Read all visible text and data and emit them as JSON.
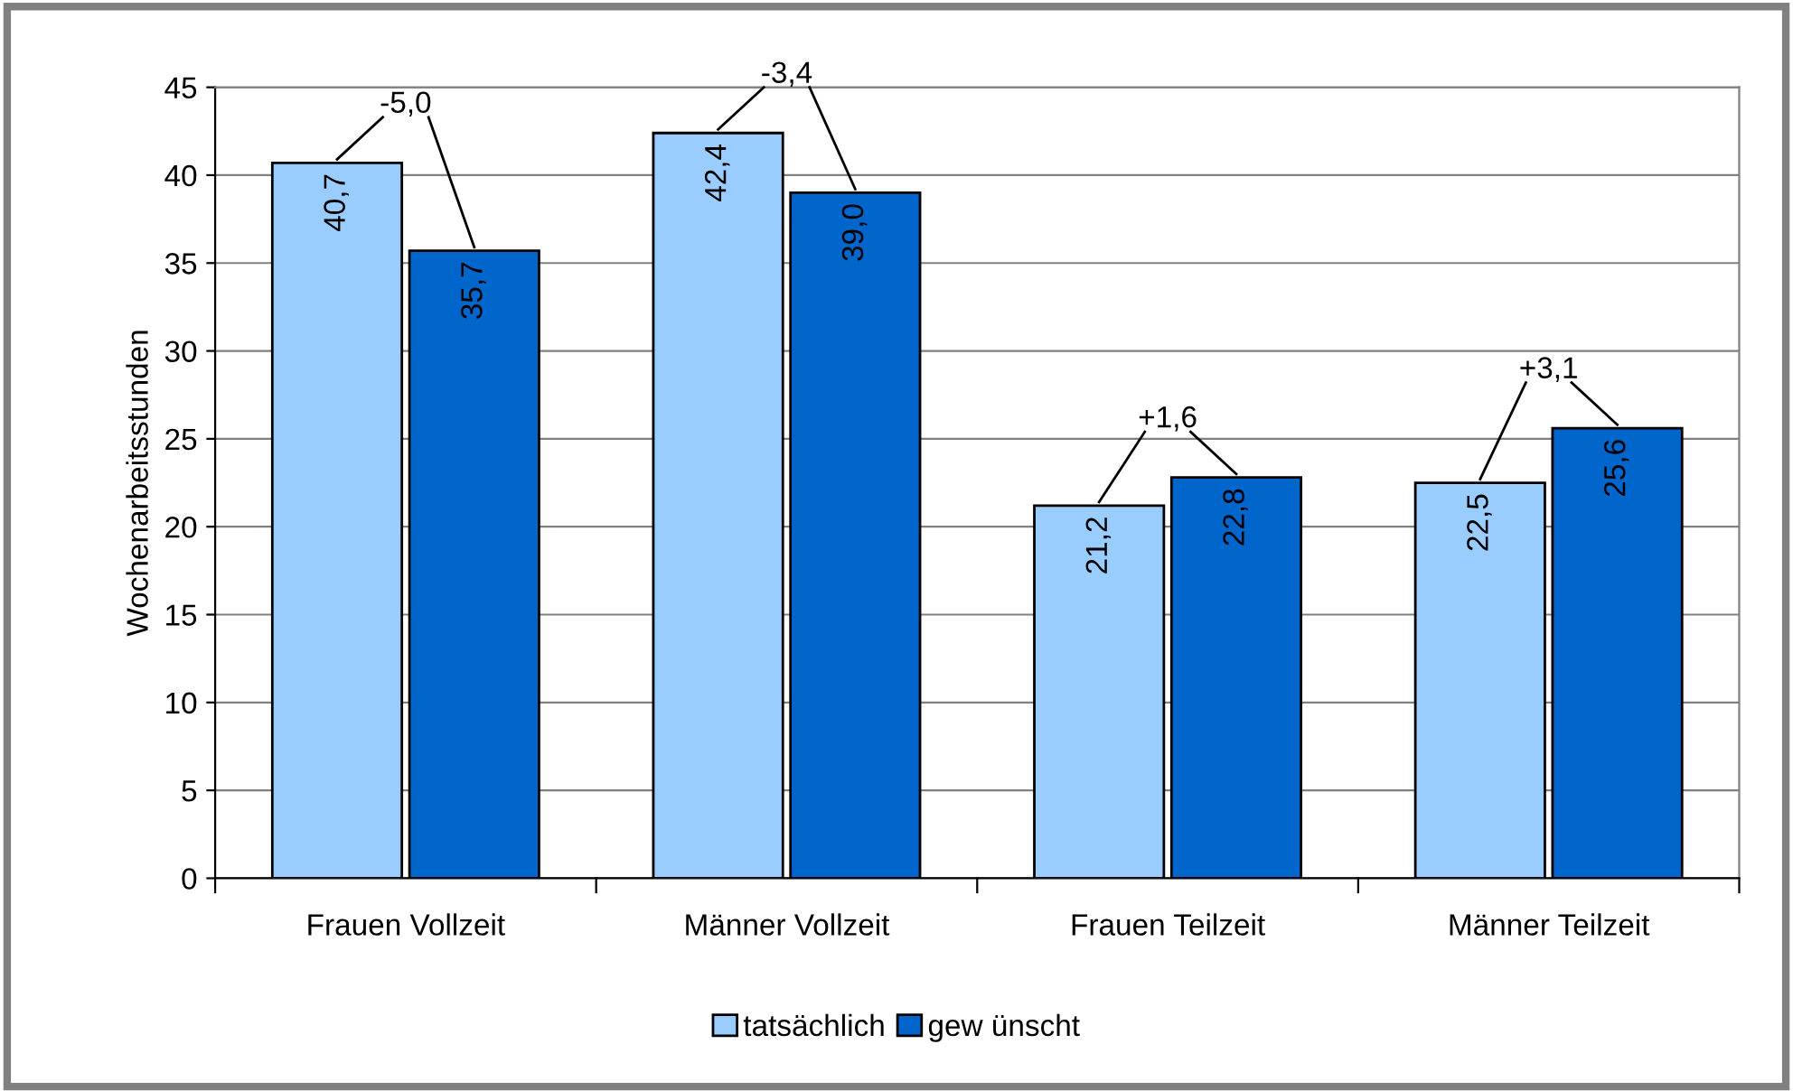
{
  "chart_data": {
    "type": "bar",
    "ylabel": "Wochenarbeitsstunden",
    "categories": [
      "Frauen Vollzeit",
      "Männer Vollzeit",
      "Frauen Teilzeit",
      "Männer Teilzeit"
    ],
    "series": [
      {
        "name": "tatsächlich",
        "color": "#99ccff",
        "values": [
          40.7,
          42.4,
          21.2,
          22.5
        ],
        "value_labels": [
          "40,7",
          "42,4",
          "21,2",
          "22,5"
        ]
      },
      {
        "name": "gew ünscht",
        "color": "#0066cc",
        "values": [
          35.7,
          39.0,
          22.8,
          25.6
        ],
        "value_labels": [
          "35,7",
          "39,0",
          "22,8",
          "25,6"
        ]
      }
    ],
    "annotations": [
      {
        "text": "-5,0",
        "x": "Frauen Vollzeit",
        "y": 40.7
      },
      {
        "text": "-3,4",
        "x": "Männer Vollzeit",
        "y": 42.4
      },
      {
        "text": "+1,6",
        "x": "Frauen Teilzeit",
        "y": 22.8
      },
      {
        "text": "+3,1",
        "x": "Männer Teilzeit",
        "y": 25.6
      }
    ],
    "ylim": [
      0,
      45
    ],
    "yticks": [
      0,
      5,
      10,
      15,
      20,
      25,
      30,
      35,
      40,
      45
    ],
    "grid": "y",
    "legend": "bottom"
  }
}
